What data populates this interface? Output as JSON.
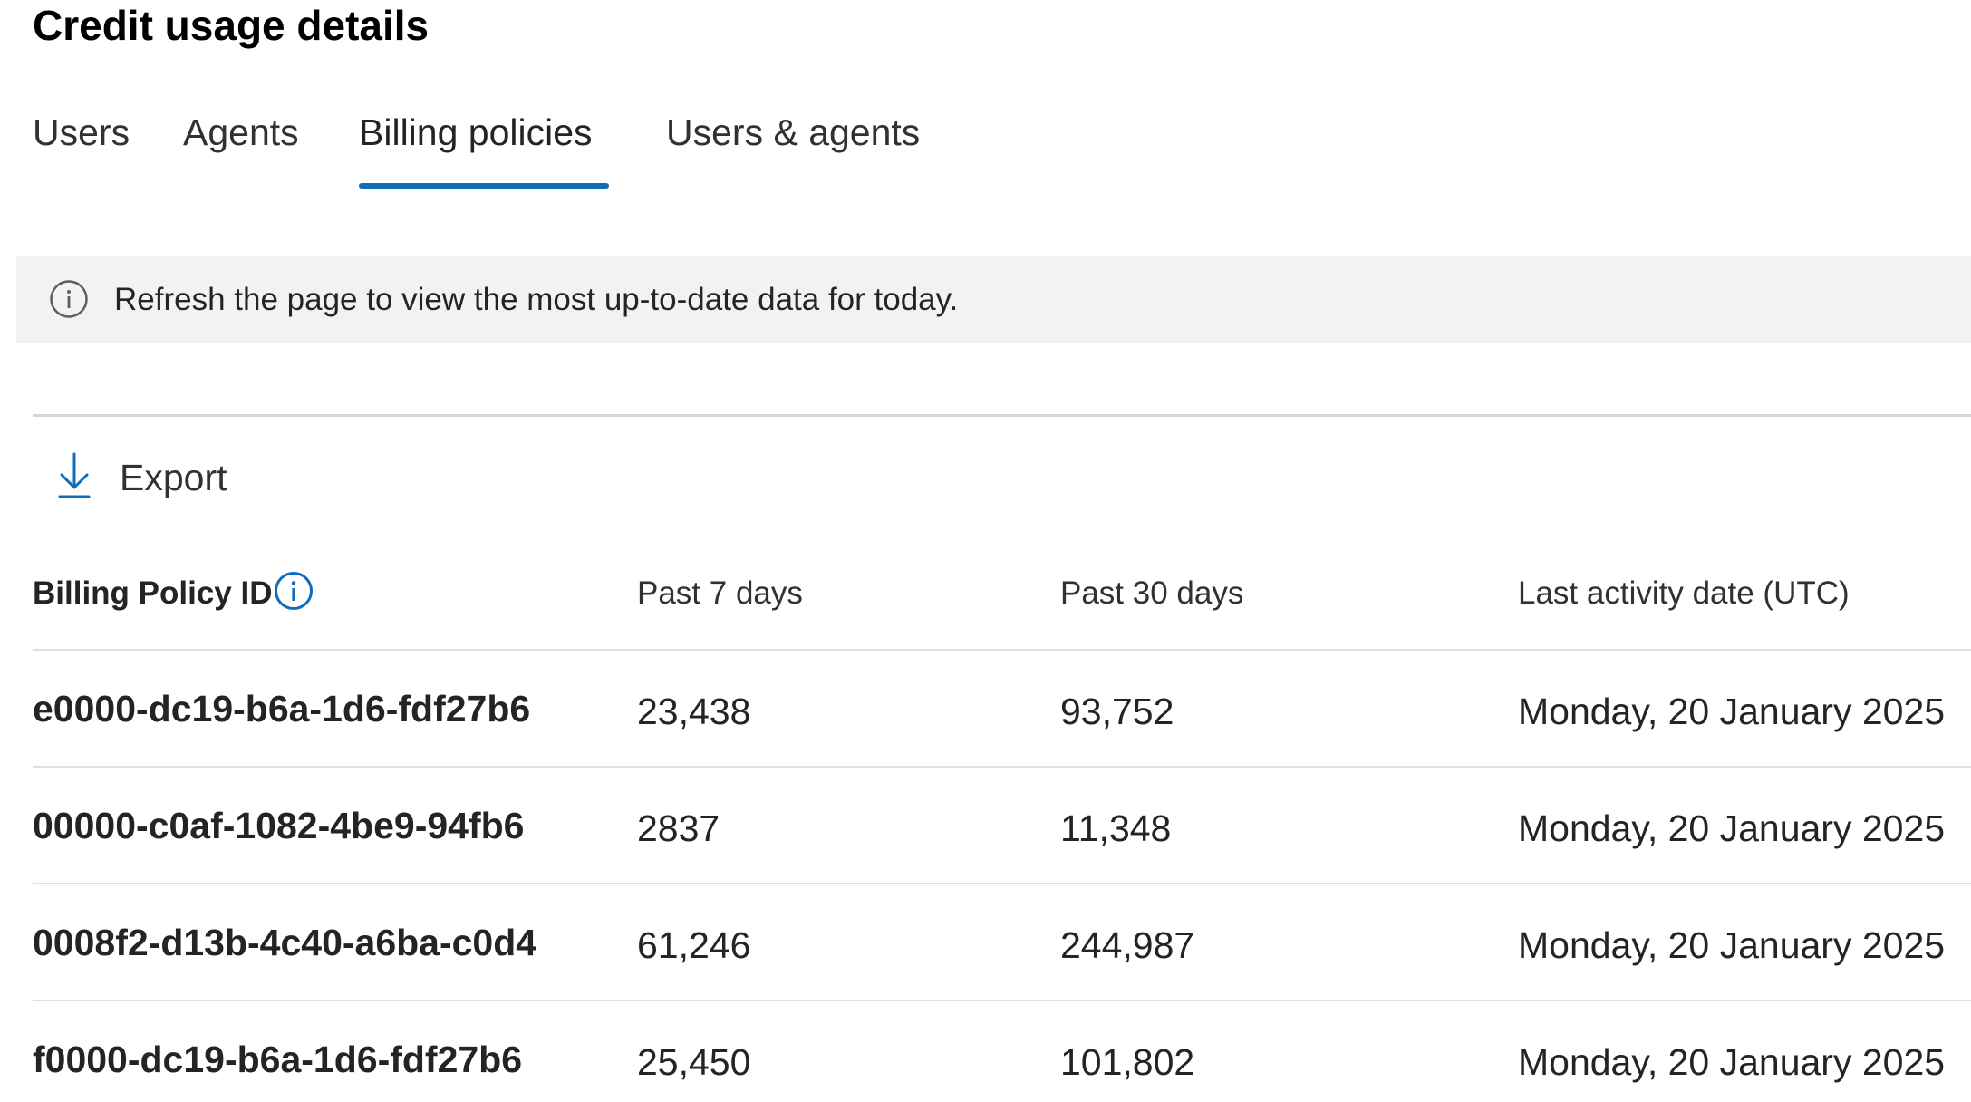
{
  "page": {
    "title": "Credit usage details"
  },
  "tabs": [
    {
      "label": "Users",
      "active": false
    },
    {
      "label": "Agents",
      "active": false
    },
    {
      "label": "Billing policies",
      "active": true
    },
    {
      "label": "Users & agents",
      "active": false
    }
  ],
  "banner": {
    "icon": "info-icon",
    "text": "Refresh the page to view the most up-to-date data for today."
  },
  "toolbar": {
    "export_label": "Export",
    "export_icon": "download-icon"
  },
  "table": {
    "columns": [
      "Billing Policy ID",
      "Past 7 days",
      "Past 30 days",
      "Last activity date (UTC)"
    ],
    "rows": [
      {
        "id": "e0000-dc19-b6a-1d6-fdf27b6",
        "past7": "23,438",
        "past30": "93,752",
        "last_activity": "Monday, 20 January 2025"
      },
      {
        "id": "00000-c0af-1082-4be9-94fb6",
        "past7": "2837",
        "past30": "11,348",
        "last_activity": "Monday, 20 January 2025"
      },
      {
        "id": "0008f2-d13b-4c40-a6ba-c0d4",
        "past7": "61,246",
        "past30": "244,987",
        "last_activity": "Monday, 20 January 2025"
      },
      {
        "id": "f0000-dc19-b6a-1d6-fdf27b6",
        "past7": "25,450",
        "past30": "101,802",
        "last_activity": "Monday, 20 January 2025"
      }
    ]
  },
  "colors": {
    "accent": "#0f6cbd",
    "banner_bg": "#f3f2f1",
    "text": "#242424"
  }
}
